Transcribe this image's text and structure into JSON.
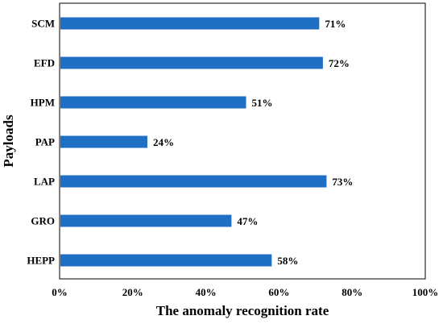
{
  "chart_data": {
    "type": "bar",
    "orientation": "horizontal",
    "title": "",
    "xlabel": "The anomaly recognition rate",
    "ylabel": "Payloads",
    "categories": [
      "SCM",
      "EFD",
      "HPM",
      "PAP",
      "LAP",
      "GRO",
      "HEPP"
    ],
    "values": [
      71,
      72,
      51,
      24,
      73,
      47,
      58
    ],
    "value_labels": [
      "71%",
      "72%",
      "51%",
      "24%",
      "73%",
      "47%",
      "58%"
    ],
    "xlim": [
      0,
      100
    ],
    "x_ticks": [
      0,
      20,
      40,
      60,
      80,
      100
    ],
    "x_tick_labels": [
      "0%",
      "20%",
      "40%",
      "60%",
      "80%",
      "100%"
    ],
    "grid": false,
    "legend": "none",
    "bar_color": "#1F6FC5"
  }
}
